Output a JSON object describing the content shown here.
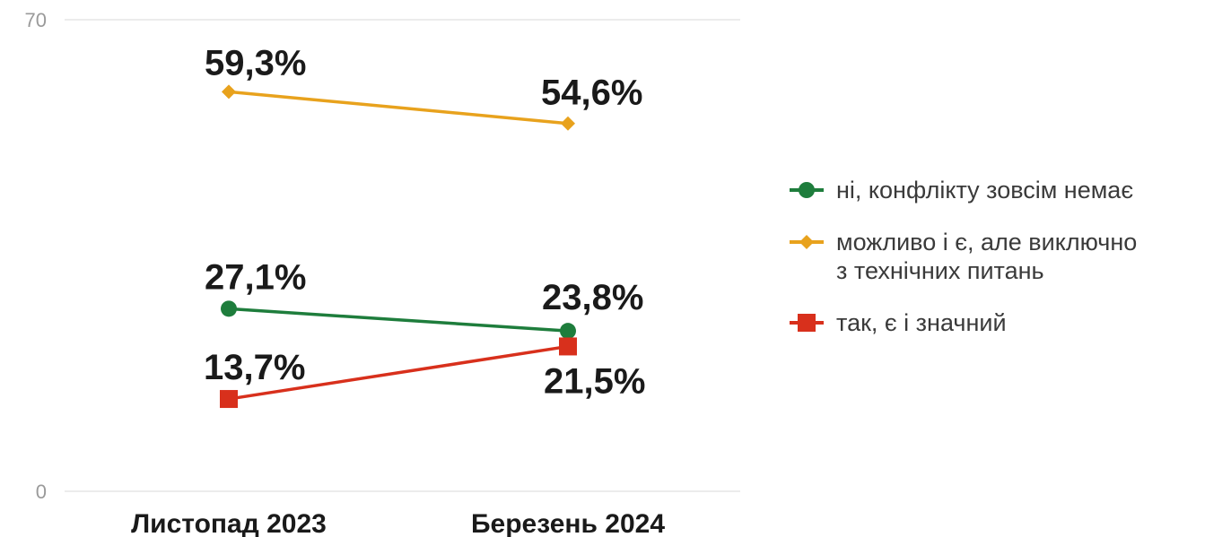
{
  "chart_data": {
    "type": "line",
    "categories": [
      "Листопад 2023",
      "Березень 2024"
    ],
    "ylim": [
      0,
      70
    ],
    "y_ticks": [
      {
        "value": 0,
        "label": "0"
      },
      {
        "value": 70,
        "label": "70"
      }
    ],
    "grid": false,
    "legend_position": "right",
    "series": [
      {
        "name": "ні, конфлікту зовсім немає",
        "name_lines": [
          "ні, конфлікту зовсім немає"
        ],
        "values": [
          27.1,
          23.8
        ],
        "labels": [
          "27,1%",
          "23,8%"
        ],
        "color": "#1e7d3c",
        "marker": "circle"
      },
      {
        "name": "можливо і є, але виключно з технічних питань",
        "name_lines": [
          "можливо і є, але виключно",
          "з технічних питань"
        ],
        "values": [
          59.3,
          54.6
        ],
        "labels": [
          "59,3%",
          "54,6%"
        ],
        "color": "#e8a21d",
        "marker": "diamond"
      },
      {
        "name": "так, є і значний",
        "name_lines": [
          "так, є і значний"
        ],
        "values": [
          13.7,
          21.5
        ],
        "labels": [
          "13,7%",
          "21,5%"
        ],
        "color": "#d8301c",
        "marker": "square"
      }
    ]
  }
}
